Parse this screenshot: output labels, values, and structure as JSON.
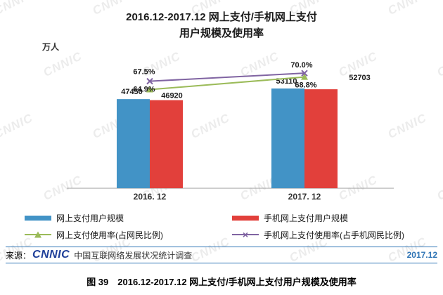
{
  "title": {
    "line1": "2016.12-2017.12 网上支付/手机网上支付",
    "line2": "用户规模及使用率"
  },
  "watermark": "CNNIC",
  "chart_data": {
    "type": "bar",
    "subtype": "grouped bars with two percentage lines on secondary axis",
    "categories": [
      "2016. 12",
      "2017. 12"
    ],
    "unit_label": "万人",
    "bar_series": [
      {
        "name": "网上支付用户规模",
        "color": "#4293C6",
        "values": [
          47450,
          53110
        ],
        "labels": [
          "47450",
          "53110"
        ]
      },
      {
        "name": "手机网上支付用户规模",
        "color": "#E2403B",
        "values": [
          46920,
          52703
        ],
        "labels": [
          "46920",
          "52703"
        ]
      }
    ],
    "line_series": [
      {
        "name": "网上支付使用率(占网民比例)",
        "color": "#9BBB59",
        "marker": "triangle",
        "values": [
          64.9,
          68.8
        ],
        "labels": [
          "64.9%",
          "68.8%"
        ]
      },
      {
        "name": "手机网上支付使用率(占手机网民比例)",
        "color": "#8064A2",
        "marker": "x",
        "values": [
          67.5,
          70.0
        ],
        "labels": [
          "67.5%",
          "70.0%"
        ]
      }
    ],
    "ylim": [
      0,
      60000
    ],
    "secondary_ylim_percent": [
      60,
      75
    ],
    "grid": false,
    "legend_position": "bottom"
  },
  "source": {
    "prefix": "来源：",
    "logo": "CNNIC",
    "text": "中国互联网络发展状况统计调查",
    "date": "2017.12"
  },
  "caption": "图 39　2016.12-2017.12 网上支付/手机网上支付用户规模及使用率"
}
